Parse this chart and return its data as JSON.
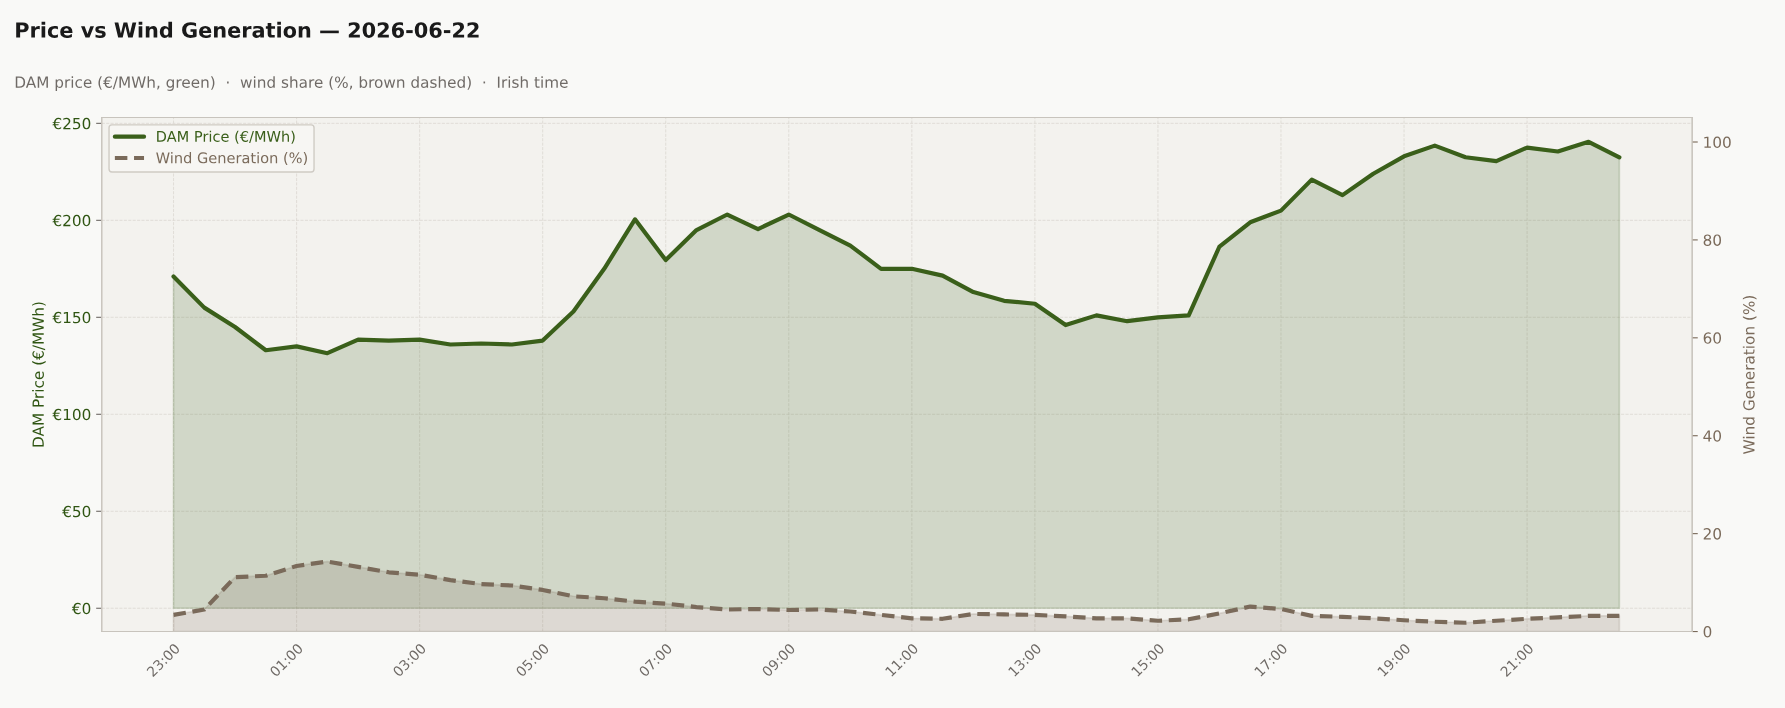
{
  "chart_data": {
    "type": "area",
    "title": "Price vs Wind Generation — 2026-06-22",
    "subtitle": "DAM price (€/MWh, green)  ·  wind share (%, brown dashed)  ·  Irish time",
    "ylabel": "DAM Price (€/MWh)",
    "y2label": "Wind Generation (%)",
    "x": [
      "2026-06-21T23:00",
      "2026-06-21T23:30",
      "2026-06-22T00:00",
      "2026-06-22T00:30",
      "2026-06-22T01:00",
      "2026-06-22T01:30",
      "2026-06-22T02:00",
      "2026-06-22T02:30",
      "2026-06-22T03:00",
      "2026-06-22T03:30",
      "2026-06-22T04:00",
      "2026-06-22T04:30",
      "2026-06-22T05:00",
      "2026-06-22T05:30",
      "2026-06-22T06:00",
      "2026-06-22T06:30",
      "2026-06-22T07:00",
      "2026-06-22T07:30",
      "2026-06-22T08:00",
      "2026-06-22T08:30",
      "2026-06-22T09:00",
      "2026-06-22T09:30",
      "2026-06-22T10:00",
      "2026-06-22T10:30",
      "2026-06-22T11:00",
      "2026-06-22T11:30",
      "2026-06-22T12:00",
      "2026-06-22T12:30",
      "2026-06-22T13:00",
      "2026-06-22T13:30",
      "2026-06-22T14:00",
      "2026-06-22T14:30",
      "2026-06-22T15:00",
      "2026-06-22T15:30",
      "2026-06-22T16:00",
      "2026-06-22T16:30",
      "2026-06-22T17:00",
      "2026-06-22T17:30",
      "2026-06-22T18:00",
      "2026-06-22T18:30",
      "2026-06-22T19:00",
      "2026-06-22T19:30",
      "2026-06-22T20:00",
      "2026-06-22T20:30",
      "2026-06-22T21:00",
      "2026-06-22T21:30",
      "2026-06-22T22:00",
      "2026-06-22T22:30"
    ],
    "series": [
      {
        "name": "DAM Price (€/MWh)",
        "color": "#3a5f1a",
        "line_style": "solid",
        "values": [
          171,
          155,
          145,
          133,
          135,
          131.5,
          138.5,
          138,
          138.5,
          136,
          136.5,
          136,
          138,
          153,
          175,
          200.5,
          179.5,
          195,
          203,
          195.5,
          203,
          195,
          187,
          175,
          175,
          171.5,
          163,
          158.5,
          157,
          146,
          151,
          148,
          150,
          151,
          186.5,
          199,
          205,
          221,
          213,
          224,
          233,
          238.5,
          232.5,
          230.5,
          237.5,
          235.5,
          240.5,
          232.5
        ]
      },
      {
        "name": "Wind Generation (%)",
        "color": "#7a6a5a",
        "line_style": "dashed",
        "axis": "y2",
        "values": [
          3.4,
          4.5,
          11.1,
          11.4,
          13.4,
          14.3,
          13.2,
          12.1,
          11.6,
          10.5,
          9.7,
          9.4,
          8.5,
          7.2,
          6.8,
          6.1,
          5.7,
          5.0,
          4.5,
          4.6,
          4.4,
          4.5,
          4.1,
          3.4,
          2.7,
          2.6,
          3.6,
          3.5,
          3.4,
          3.1,
          2.7,
          2.7,
          2.2,
          2.5,
          3.7,
          5.1,
          4.6,
          3.2,
          3.0,
          2.7,
          2.3,
          2.0,
          1.8,
          2.2,
          2.6,
          2.9,
          3.2,
          3.2
        ]
      }
    ],
    "xlim": [
      "2026-06-21T21:50",
      "2026-06-22T23:41"
    ],
    "xticks": [
      {
        "value": "2026-06-21T23:00",
        "label": "23:00"
      },
      {
        "value": "2026-06-22T01:00",
        "label": "01:00"
      },
      {
        "value": "2026-06-22T03:00",
        "label": "03:00"
      },
      {
        "value": "2026-06-22T05:00",
        "label": "05:00"
      },
      {
        "value": "2026-06-22T07:00",
        "label": "07:00"
      },
      {
        "value": "2026-06-22T09:00",
        "label": "09:00"
      },
      {
        "value": "2026-06-22T11:00",
        "label": "11:00"
      },
      {
        "value": "2026-06-22T13:00",
        "label": "13:00"
      },
      {
        "value": "2026-06-22T15:00",
        "label": "15:00"
      },
      {
        "value": "2026-06-22T17:00",
        "label": "17:00"
      },
      {
        "value": "2026-06-22T19:00",
        "label": "19:00"
      },
      {
        "value": "2026-06-22T21:00",
        "label": "21:00"
      }
    ],
    "ylim": [
      -12,
      253
    ],
    "yticks": [
      {
        "value": 0,
        "label": "€0"
      },
      {
        "value": 50,
        "label": "€50"
      },
      {
        "value": 100,
        "label": "€100"
      },
      {
        "value": 150,
        "label": "€150"
      },
      {
        "value": 200,
        "label": "€200"
      },
      {
        "value": 250,
        "label": "€250"
      }
    ],
    "y2lim": [
      0,
      105
    ],
    "y2ticks": [
      0,
      20,
      40,
      60,
      80,
      100
    ],
    "grid": true,
    "legend": "top left"
  }
}
